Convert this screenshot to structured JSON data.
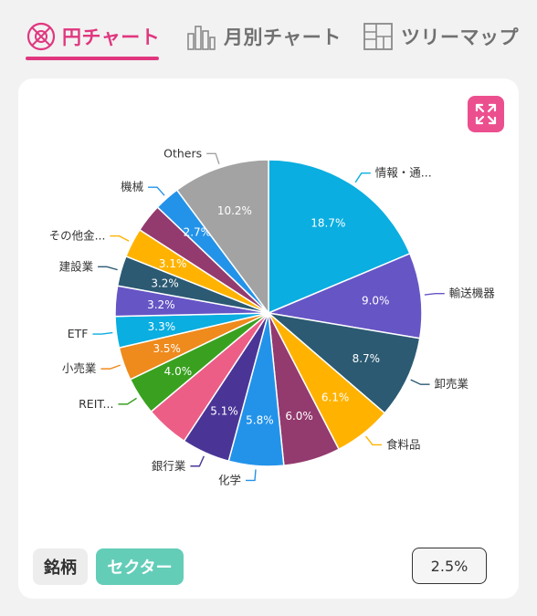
{
  "tabs": [
    {
      "label": "円チャート",
      "active": true,
      "icon": "pie-chart-icon"
    },
    {
      "label": "月別チャート",
      "active": false,
      "icon": "bar-chart-icon"
    },
    {
      "label": "ツリーマップ",
      "active": false,
      "icon": "treemap-icon"
    }
  ],
  "colors": {
    "accent": "#e0377f",
    "sector_button": "#63cdb8",
    "expand_button": "#ec4f8e"
  },
  "expand_icon": "expand-icon",
  "toggle": {
    "stock_label": "銘柄",
    "sector_label": "セクター",
    "selected": "セクター"
  },
  "threshold_value": "2.5%",
  "chart_data": {
    "type": "pie",
    "slices": [
      {
        "label": "情報・通...",
        "value": 18.7,
        "display": "18.7%",
        "color": "#0aaee0"
      },
      {
        "label": "輸送機器",
        "value": 9.0,
        "display": "9.0%",
        "color": "#6655c5"
      },
      {
        "label": "卸売業",
        "value": 8.7,
        "display": "8.7%",
        "color": "#2b5a72"
      },
      {
        "label": "食料品",
        "value": 6.1,
        "display": "6.1%",
        "color": "#ffb300"
      },
      {
        "label": "",
        "value": 6.0,
        "display": "6.0%",
        "color": "#933a6e"
      },
      {
        "label": "化学",
        "value": 5.8,
        "display": "5.8%",
        "color": "#2393ea"
      },
      {
        "label": "銀行業",
        "value": 5.1,
        "display": "5.1%",
        "color": "#4a3597"
      },
      {
        "label": "",
        "value": 4.6,
        "display": "",
        "color": "#ec5e86"
      },
      {
        "label": "REIT...",
        "value": 4.0,
        "display": "4.0%",
        "color": "#3aa120"
      },
      {
        "label": "小売業",
        "value": 3.5,
        "display": "3.5%",
        "color": "#ef8a1d"
      },
      {
        "label": "ETF",
        "value": 3.3,
        "display": "3.3%",
        "color": "#0aaee0"
      },
      {
        "label": "",
        "value": 3.2,
        "display": "3.2%",
        "color": "#6655c5"
      },
      {
        "label": "建設業",
        "value": 3.2,
        "display": "3.2%",
        "color": "#2b5a72"
      },
      {
        "label": "その他金...",
        "value": 3.1,
        "display": "3.1%",
        "color": "#ffb300"
      },
      {
        "label": "",
        "value": 3.0,
        "display": "",
        "color": "#933a6e"
      },
      {
        "label": "機械",
        "value": 2.7,
        "display": "2.7%",
        "color": "#2393ea"
      },
      {
        "label": "Others",
        "value": 10.2,
        "display": "10.2%",
        "color": "#a3a3a3"
      }
    ]
  }
}
